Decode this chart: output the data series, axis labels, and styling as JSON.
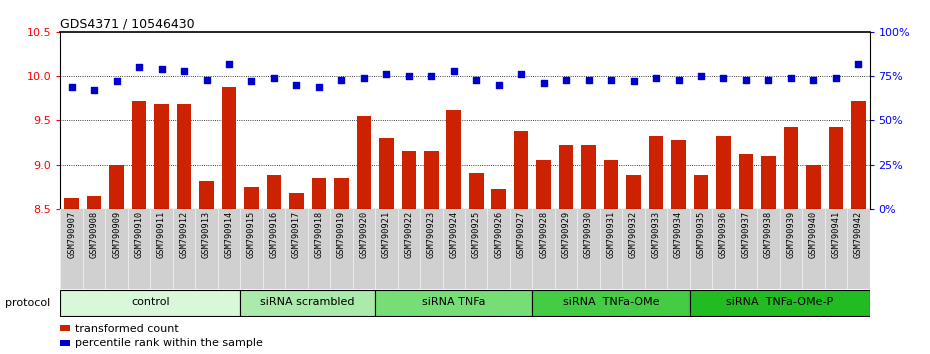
{
  "title": "GDS4371 / 10546430",
  "samples": [
    "GSM790907",
    "GSM790908",
    "GSM790909",
    "GSM790910",
    "GSM790911",
    "GSM790912",
    "GSM790913",
    "GSM790914",
    "GSM790915",
    "GSM790916",
    "GSM790917",
    "GSM790918",
    "GSM790919",
    "GSM790920",
    "GSM790921",
    "GSM790922",
    "GSM790923",
    "GSM790924",
    "GSM790925",
    "GSM790926",
    "GSM790927",
    "GSM790928",
    "GSM790929",
    "GSM790930",
    "GSM790931",
    "GSM790932",
    "GSM790933",
    "GSM790934",
    "GSM790935",
    "GSM790936",
    "GSM790937",
    "GSM790938",
    "GSM790939",
    "GSM790940",
    "GSM790941",
    "GSM790942"
  ],
  "bar_values": [
    8.62,
    8.65,
    9.0,
    9.72,
    9.68,
    9.68,
    8.82,
    9.88,
    8.75,
    8.88,
    8.68,
    8.85,
    8.85,
    9.55,
    9.3,
    9.15,
    9.15,
    9.62,
    8.9,
    8.72,
    9.38,
    9.05,
    9.22,
    9.22,
    9.05,
    8.88,
    9.32,
    9.28,
    8.88,
    9.32,
    9.12,
    9.1,
    9.42,
    9.0,
    9.42,
    9.72
  ],
  "dot_values": [
    69,
    67,
    72,
    80,
    79,
    78,
    73,
    82,
    72,
    74,
    70,
    69,
    73,
    74,
    76,
    75,
    75,
    78,
    73,
    70,
    76,
    71,
    73,
    73,
    73,
    72,
    74,
    73,
    75,
    74,
    73,
    73,
    74,
    73,
    74,
    82
  ],
  "groups": [
    {
      "label": "control",
      "start": 0,
      "end": 8,
      "color": "#d9f7d9"
    },
    {
      "label": "siRNA scrambled",
      "start": 8,
      "end": 14,
      "color": "#aaeaaa"
    },
    {
      "label": "siRNA TNFa",
      "start": 14,
      "end": 21,
      "color": "#77dd77"
    },
    {
      "label": "siRNA  TNFa-OMe",
      "start": 21,
      "end": 28,
      "color": "#44cc44"
    },
    {
      "label": "siRNA  TNFa-OMe-P",
      "start": 28,
      "end": 36,
      "color": "#22bb22"
    }
  ],
  "ylim_left": [
    8.5,
    10.5
  ],
  "ylim_right": [
    0,
    100
  ],
  "yticks_left": [
    8.5,
    9.0,
    9.5,
    10.0,
    10.5
  ],
  "yticks_right": [
    0,
    25,
    50,
    75,
    100
  ],
  "bar_color": "#cc2200",
  "dot_color": "#0000cc",
  "bar_bottom": 8.5,
  "grid_values": [
    9.0,
    9.5,
    10.0
  ],
  "legend_items": [
    {
      "label": "transformed count",
      "color": "#cc2200"
    },
    {
      "label": "percentile rank within the sample",
      "color": "#0000cc"
    }
  ],
  "xtick_bg": "#d0d0d0"
}
